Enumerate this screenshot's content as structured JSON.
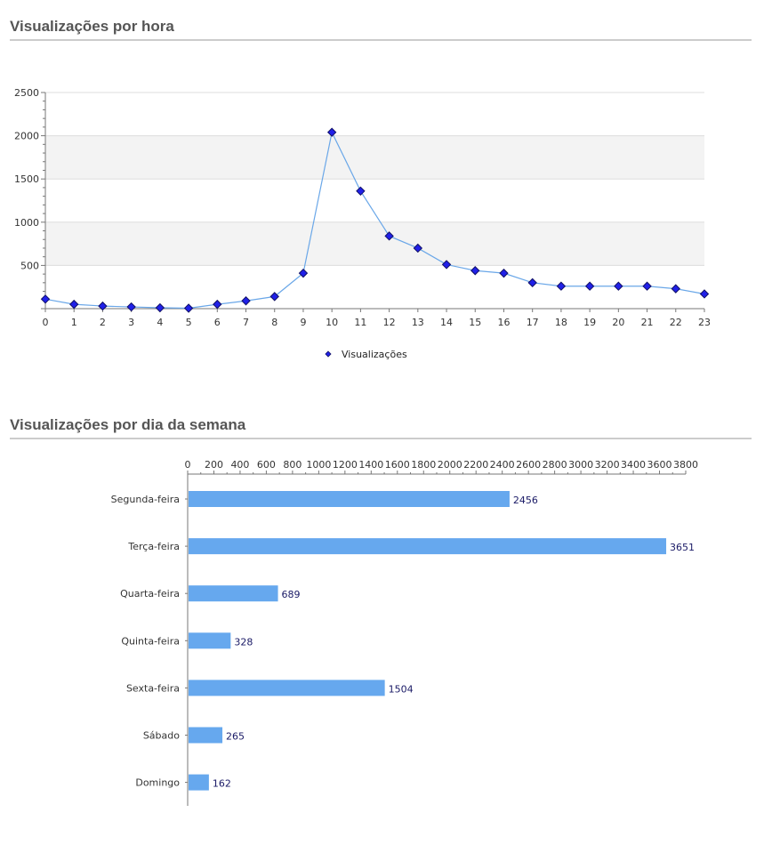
{
  "sections": {
    "hourly_title": "Visualizações por hora",
    "weekday_title": "Visualizações por dia da semana"
  },
  "chart_data": [
    {
      "type": "line",
      "title": "Visualizações por hora",
      "x": [
        0,
        1,
        2,
        3,
        4,
        5,
        6,
        7,
        8,
        9,
        10,
        11,
        12,
        13,
        14,
        15,
        16,
        17,
        18,
        19,
        20,
        21,
        22,
        23
      ],
      "series": [
        {
          "name": "Visualizações",
          "values": [
            110,
            50,
            30,
            20,
            10,
            5,
            50,
            90,
            140,
            410,
            2040,
            1360,
            840,
            700,
            510,
            440,
            410,
            300,
            260,
            260,
            260,
            260,
            230,
            170
          ]
        }
      ],
      "ylim": [
        0,
        2500
      ],
      "yticks": [
        500,
        1000,
        1500,
        2000,
        2500
      ],
      "legend": "bottom-center",
      "colors": {
        "line": "#6aa7e8",
        "marker": "#2020e8",
        "band": "#f3f3f3"
      }
    },
    {
      "type": "bar",
      "orientation": "horizontal",
      "title": "Visualizações por dia da semana",
      "categories": [
        "Segunda-feira",
        "Terça-feira",
        "Quarta-feira",
        "Quinta-feira",
        "Sexta-feira",
        "Sábado",
        "Domingo"
      ],
      "values": [
        2456,
        3651,
        689,
        328,
        1504,
        265,
        162
      ],
      "xlim": [
        0,
        3800
      ],
      "xticks": [
        0,
        200,
        400,
        600,
        800,
        1000,
        1200,
        1400,
        1600,
        1800,
        2000,
        2200,
        2400,
        2600,
        2800,
        3000,
        3200,
        3400,
        3600,
        3800
      ],
      "colors": {
        "bar": "#66a8ee",
        "label": "#1a1a66"
      }
    }
  ]
}
